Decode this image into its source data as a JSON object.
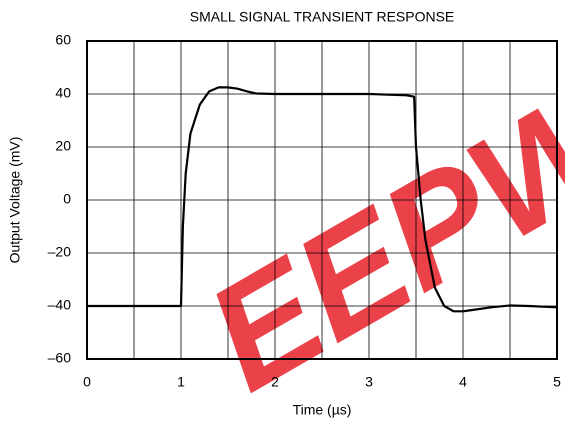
{
  "chart_data": {
    "type": "line",
    "title": "SMALL SIGNAL TRANSIENT RESPONSE",
    "x_label": "Time (µs)",
    "y_label": "Output Voltage (mV)",
    "watermark": "EEPW",
    "x": [
      0,
      1.0,
      1.02,
      1.05,
      1.1,
      1.2,
      1.3,
      1.4,
      1.5,
      1.6,
      1.7,
      1.8,
      2.0,
      2.5,
      3.0,
      3.4,
      3.48,
      3.5,
      3.55,
      3.6,
      3.7,
      3.8,
      3.9,
      4.0,
      4.1,
      4.3,
      4.5,
      4.7,
      5.0
    ],
    "series": [
      {
        "color": "#000000",
        "values": [
          -40,
          -40,
          -10,
          10,
          25,
          36,
          41,
          42.5,
          42.5,
          42,
          41,
          40.2,
          40,
          40,
          40,
          39.5,
          39,
          20,
          0,
          -15,
          -33,
          -40,
          -42,
          -42,
          -41.5,
          -40.5,
          -39.8,
          -40,
          -40.5
        ]
      }
    ],
    "xlim": [
      0,
      5
    ],
    "xticks": [
      0,
      1,
      2,
      3,
      4,
      5
    ],
    "x_minor_grid": [
      0.5,
      1.5,
      2.5,
      3.5,
      4.5
    ],
    "ylim": [
      -60,
      60
    ],
    "yticks": [
      60,
      40,
      20,
      0,
      {
        "value": -20,
        "label": "–20"
      },
      {
        "value": -40,
        "label": "–40"
      },
      {
        "value": -60,
        "label": "–60"
      }
    ],
    "grid": true
  }
}
